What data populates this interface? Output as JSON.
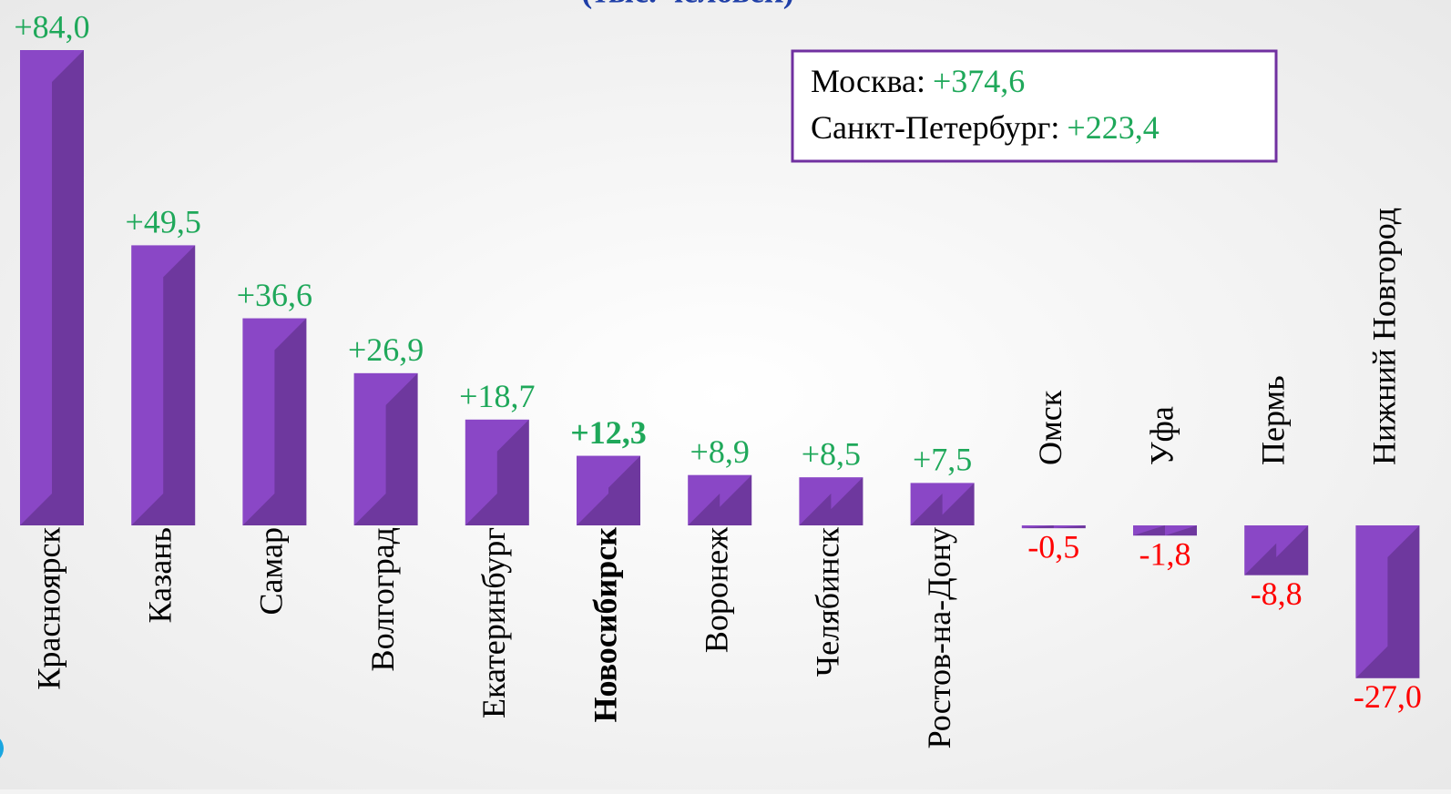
{
  "chart_data": {
    "type": "bar",
    "subtitle": "(тыс. человек)",
    "categories": [
      "Красноярск",
      "Казань",
      "Самар",
      "Волгоград",
      "Екатеринбург",
      "Новосибирск",
      "Воронеж",
      "Челябинск",
      "Ростов-на-Дону",
      "Омск",
      "Уфа",
      "Пермь",
      "Нижний Новгород"
    ],
    "values": [
      84.0,
      49.5,
      36.6,
      26.9,
      18.7,
      12.3,
      8.9,
      8.5,
      7.5,
      -0.5,
      -1.8,
      -8.8,
      -27.0
    ],
    "value_labels": [
      "+84,0",
      "+49,5",
      "+36,6",
      "+26,9",
      "+18,7",
      "+12,3",
      "+8,9",
      "+8,5",
      "+7,5",
      "-0,5",
      "-1,8",
      "-8,8",
      "-27,0"
    ],
    "color": "#8a47c6",
    "positive_label_color": "#1fa85a",
    "negative_label_color": "#ff0000",
    "highlight": "Новосибирск",
    "annotations": [
      {
        "label": "Москва:",
        "value_label": "+374,6"
      },
      {
        "label": "Санкт-Петербург:",
        "value_label": "+223,4"
      }
    ]
  }
}
